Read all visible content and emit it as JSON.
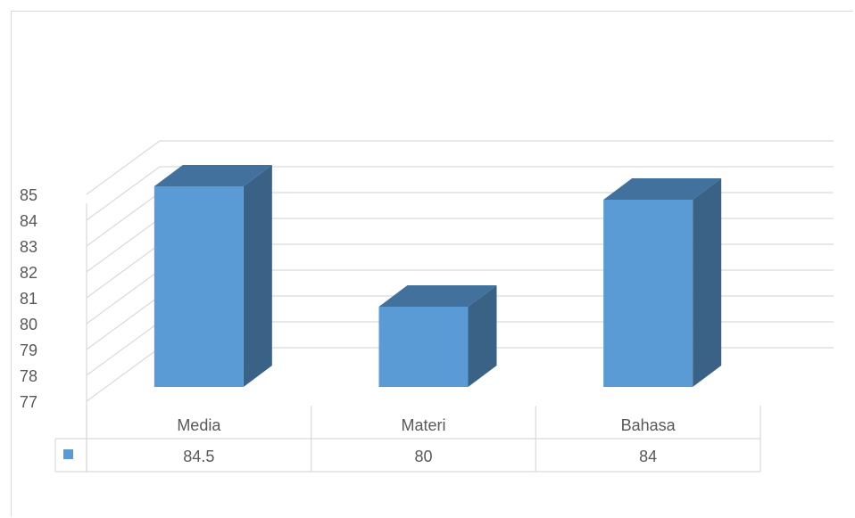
{
  "chart_data": {
    "type": "bar",
    "categories": [
      "Media",
      "Materi",
      "Bahasa"
    ],
    "series": [
      {
        "values": [
          84.5,
          80,
          84
        ],
        "value_labels": [
          "84.5",
          "80",
          "84"
        ]
      }
    ],
    "title": "",
    "xlabel": "",
    "ylabel": "",
    "ylim": [
      77,
      85
    ],
    "yticks": [
      "77",
      "78",
      "79",
      "80",
      "81",
      "82",
      "83",
      "84",
      "85"
    ],
    "grid": true,
    "style": "3d-column-with-data-table",
    "colors": {
      "front": "#5b9bd5",
      "top": "#41719c",
      "side": "#3a6286",
      "grid": "#d9d9d9",
      "text": "#595959"
    }
  }
}
